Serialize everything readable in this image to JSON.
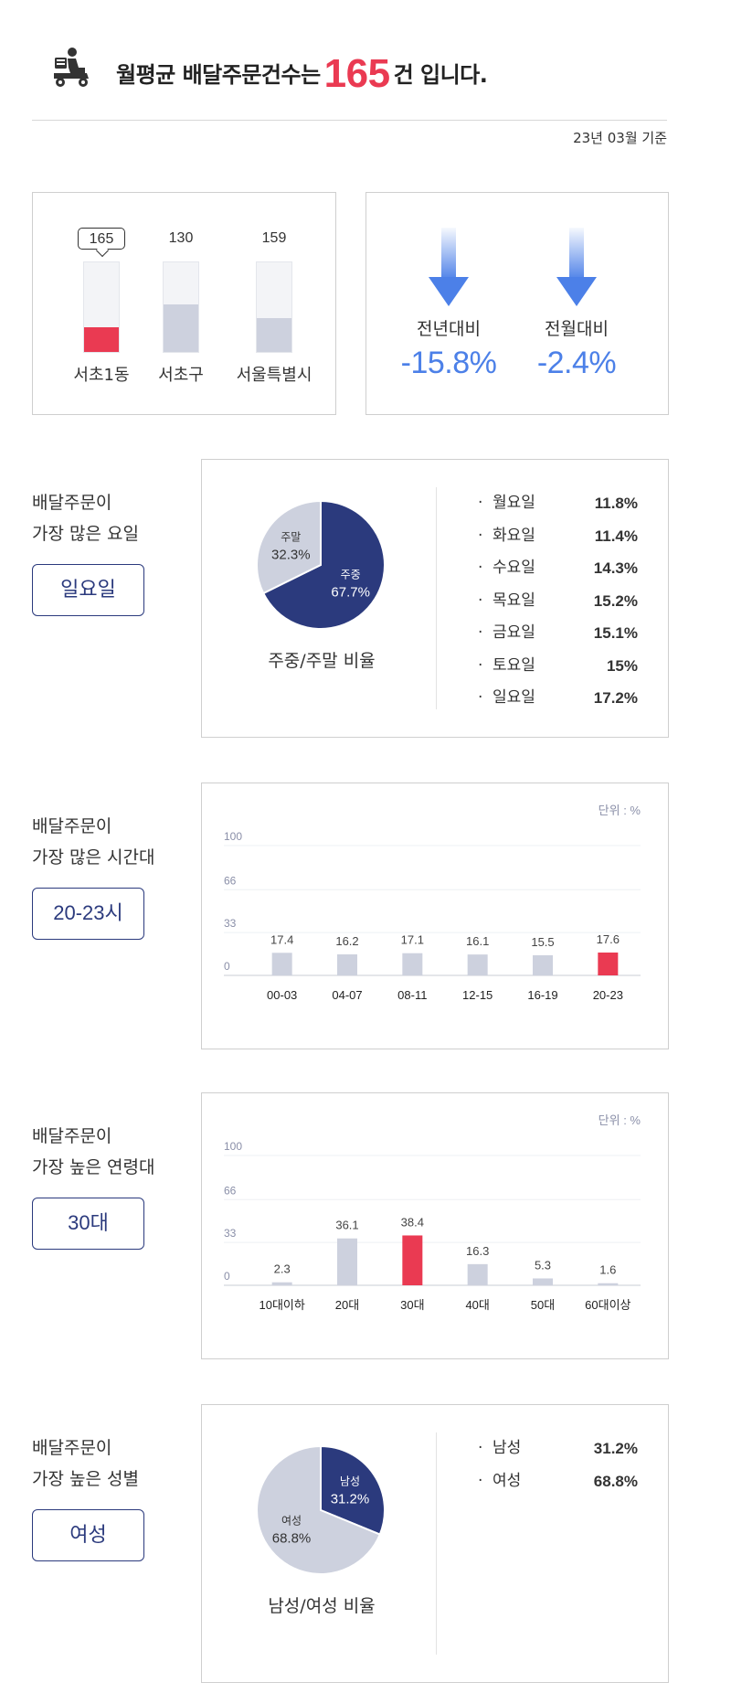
{
  "header": {
    "prefix": "월평균 배달주문건수는",
    "count": "165",
    "suffix": "건 입니다.",
    "basis": "23년 03월 기준"
  },
  "compare": {
    "items": [
      {
        "label": "서초1동",
        "value": "165",
        "ratio": 0.28,
        "highlight": true
      },
      {
        "label": "서초구",
        "value": "130",
        "ratio": 0.53,
        "highlight": false
      },
      {
        "label": "서울특별시",
        "value": "159",
        "ratio": 0.38,
        "highlight": false
      }
    ]
  },
  "change": {
    "items": [
      {
        "label": "전년대비",
        "value": "-15.8%"
      },
      {
        "label": "전월대비",
        "value": "-2.4%"
      }
    ],
    "color": "#4c80e8"
  },
  "weekday": {
    "question_line1": "배달주문이",
    "question_line2": "가장 많은 요일",
    "answer": "일요일",
    "caption": "주중/주말 비율",
    "pie": [
      {
        "label": "주중",
        "value": "67.7%",
        "pct": 67.7,
        "color": "#2b3a7d"
      },
      {
        "label": "주말",
        "value": "32.3%",
        "pct": 32.3,
        "color": "#cdd1de"
      }
    ],
    "days": [
      {
        "label": "월요일",
        "value": "11.8%"
      },
      {
        "label": "화요일",
        "value": "11.4%"
      },
      {
        "label": "수요일",
        "value": "14.3%"
      },
      {
        "label": "목요일",
        "value": "15.2%"
      },
      {
        "label": "금요일",
        "value": "15.1%"
      },
      {
        "label": "토요일",
        "value": "15%"
      },
      {
        "label": "일요일",
        "value": "17.2%"
      }
    ],
    "bullet": "·"
  },
  "time": {
    "question_line1": "배달주문이",
    "question_line2": "가장 많은 시간대",
    "answer": "20-23시"
  },
  "age": {
    "question_line1": "배달주문이",
    "question_line2": "가장 높은 연령대",
    "answer": "30대"
  },
  "gender": {
    "question_line1": "배달주문이",
    "question_line2": "가장 높은 성별",
    "answer": "여성",
    "caption": "남성/여성 비율",
    "pie": [
      {
        "label": "남성",
        "value": "31.2%",
        "pct": 31.2,
        "color": "#2b3a7d"
      },
      {
        "label": "여성",
        "value": "68.8%",
        "pct": 68.8,
        "color": "#cdd1de"
      }
    ],
    "list": [
      {
        "label": "남성",
        "value": "31.2%"
      },
      {
        "label": "여성",
        "value": "68.8%"
      }
    ],
    "bullet": "·"
  },
  "chart_data": [
    {
      "type": "bar",
      "unit_label": "단위 : %",
      "categories": [
        "00-03",
        "04-07",
        "08-11",
        "12-15",
        "16-19",
        "20-23"
      ],
      "values": [
        17.4,
        16.2,
        17.1,
        16.1,
        15.5,
        17.6
      ],
      "value_labels": [
        "17.4",
        "16.2",
        "17.1",
        "16.1",
        "15.5",
        "17.6"
      ],
      "highlight_index": 5,
      "yticks": [
        "100",
        "66",
        "33",
        "0"
      ],
      "ylim": [
        0,
        100
      ],
      "grid": true
    },
    {
      "type": "bar",
      "unit_label": "단위 : %",
      "categories": [
        "10대이하",
        "20대",
        "30대",
        "40대",
        "50대",
        "60대이상"
      ],
      "values": [
        2.3,
        36.1,
        38.4,
        16.3,
        5.3,
        1.6
      ],
      "value_labels": [
        "2.3",
        "36.1",
        "38.4",
        "16.3",
        "5.3",
        "1.6"
      ],
      "highlight_index": 2,
      "yticks": [
        "100",
        "66",
        "33",
        "0"
      ],
      "ylim": [
        0,
        100
      ],
      "grid": true
    }
  ],
  "colors": {
    "highlight": "#ea3a52",
    "bar": "#cdd1de",
    "navy": "#2b3a7d"
  }
}
